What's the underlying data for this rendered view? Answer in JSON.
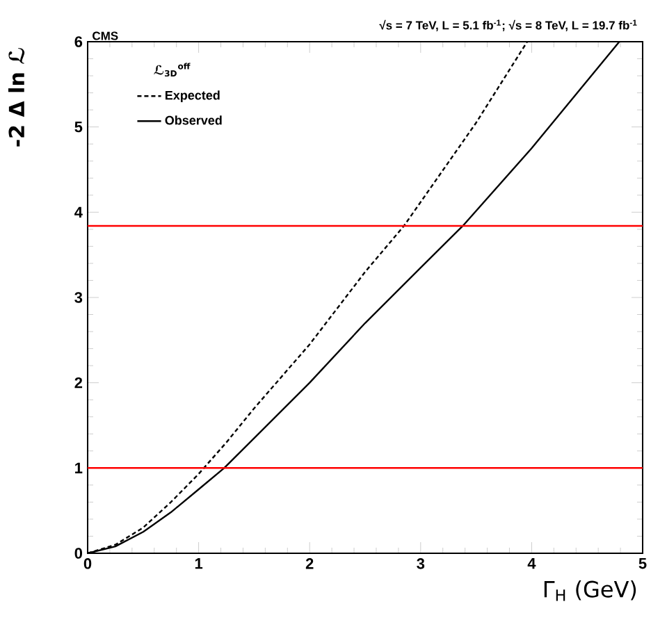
{
  "chart_data": {
    "type": "line",
    "title": "√s = 7 TeV, L = 5.1 fb$^{-1}$; √s = 8 TeV, L = 19.7 fb$^{-1}$",
    "xlabel": "Γ$_{H}$ (GeV)",
    "ylabel": "-2 Δ ln ℒ",
    "legend_title": "ℒ$_{3D}$$^{off}$",
    "annotations": [
      "CMS"
    ],
    "legend": "top left",
    "xlim": [
      0,
      5
    ],
    "ylim": [
      0,
      6
    ],
    "xticks": [
      0,
      1,
      2,
      3,
      4,
      5
    ],
    "yticks": [
      0,
      1,
      2,
      3,
      4,
      5,
      6
    ],
    "series": [
      {
        "name": "Expected",
        "color": "#000000",
        "line_style": "dashed",
        "x": [
          0,
          0.25,
          0.5,
          0.75,
          1,
          1.25,
          1.5,
          2,
          2.5,
          2.85,
          3.5,
          3.96
        ],
        "values": [
          0,
          0.1,
          0.3,
          0.6,
          0.93,
          1.3,
          1.7,
          2.45,
          3.3,
          3.84,
          5.05,
          6
        ]
      },
      {
        "name": "Observed",
        "color": "#000000",
        "line_style": "solid",
        "x": [
          0,
          0.25,
          0.5,
          0.75,
          1,
          1.23,
          1.5,
          2,
          2.5,
          3,
          3.38,
          4,
          4.79
        ],
        "values": [
          0,
          0.08,
          0.25,
          0.48,
          0.75,
          1,
          1.35,
          2.0,
          2.7,
          3.35,
          3.84,
          4.75,
          6
        ]
      }
    ],
    "ref_lines": [
      {
        "axis": "y",
        "value": 3.84,
        "color": "#ff0000"
      },
      {
        "axis": "y",
        "value": 1,
        "color": "#ff0000"
      }
    ]
  }
}
